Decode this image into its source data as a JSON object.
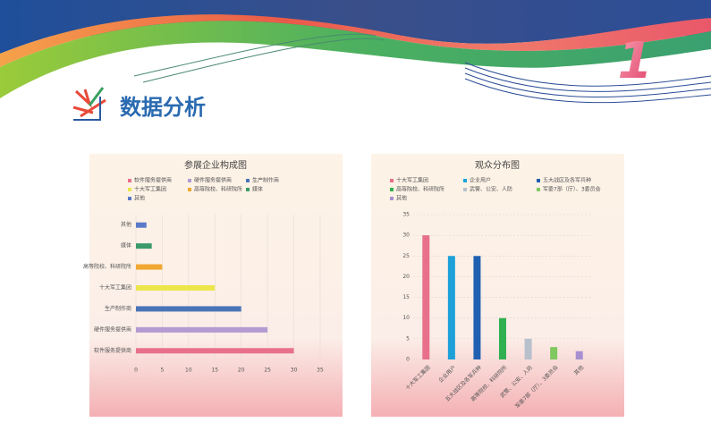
{
  "header": {
    "title": "数据分析",
    "number": "1"
  },
  "chart_data": [
    {
      "type": "bar",
      "horizontal": true,
      "title": "参展企业构成图",
      "categories": [
        "软件服务提供商",
        "硬件服务提供商",
        "生产制作商",
        "十大军工集团",
        "高等院校、科研院所",
        "媒体",
        "其他"
      ],
      "values": [
        30,
        25,
        20,
        15,
        5,
        3,
        2
      ],
      "colors": [
        "#e8708a",
        "#b39bd2",
        "#4a74b8",
        "#ece64a",
        "#f0a830",
        "#3a9a6a",
        "#5a7ac8"
      ],
      "xlim": [
        0,
        35
      ],
      "xticks": [
        0,
        5,
        10,
        15,
        20,
        25,
        30,
        35
      ],
      "grid": true
    },
    {
      "type": "bar",
      "horizontal": false,
      "title": "观众分布图",
      "categories": [
        "十大军工集团",
        "企业用户",
        "五大战区及各军兵种",
        "高等院校、科研院所",
        "武警、公安、人防",
        "军委7部（厅）、3委员会",
        "其他"
      ],
      "values": [
        30,
        25,
        25,
        10,
        5,
        3,
        2
      ],
      "colors": [
        "#e8708a",
        "#1ea0d8",
        "#2060b0",
        "#30b050",
        "#b8c0cc",
        "#80c860",
        "#a890d0"
      ],
      "ylim": [
        0,
        35
      ],
      "yticks": [
        0,
        5,
        10,
        15,
        20,
        25,
        30,
        35
      ],
      "grid": true
    }
  ]
}
